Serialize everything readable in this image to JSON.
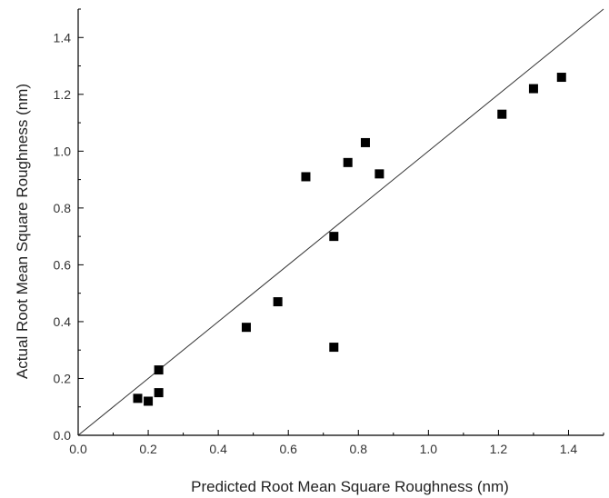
{
  "chart_data": {
    "type": "scatter",
    "xlabel": "Predicted Root Mean Square Roughness (nm)",
    "ylabel": "Actual Root Mean Square Roughness (nm)",
    "xlim": [
      0.0,
      1.5
    ],
    "ylim": [
      0.0,
      1.5
    ],
    "x_ticks": [
      "0.0",
      "0.2",
      "0.4",
      "0.6",
      "0.8",
      "1.0",
      "1.2",
      "1.4"
    ],
    "y_ticks": [
      "0.0",
      "0.2",
      "0.4",
      "0.6",
      "0.8",
      "1.0",
      "1.2",
      "1.4"
    ],
    "grid": false,
    "reference_line": {
      "type": "identity",
      "from": [
        0.0,
        0.0
      ],
      "to": [
        1.5,
        1.5
      ]
    },
    "series": [
      {
        "marker": "square",
        "color": "#000000",
        "points": [
          {
            "x": 0.17,
            "y": 0.13
          },
          {
            "x": 0.2,
            "y": 0.12
          },
          {
            "x": 0.23,
            "y": 0.15
          },
          {
            "x": 0.23,
            "y": 0.23
          },
          {
            "x": 0.48,
            "y": 0.38
          },
          {
            "x": 0.57,
            "y": 0.47
          },
          {
            "x": 0.65,
            "y": 0.91
          },
          {
            "x": 0.73,
            "y": 0.7
          },
          {
            "x": 0.73,
            "y": 0.31
          },
          {
            "x": 0.77,
            "y": 0.96
          },
          {
            "x": 0.82,
            "y": 1.03
          },
          {
            "x": 0.86,
            "y": 0.92
          },
          {
            "x": 1.21,
            "y": 1.13
          },
          {
            "x": 1.3,
            "y": 1.22
          },
          {
            "x": 1.38,
            "y": 1.26
          }
        ]
      }
    ]
  }
}
